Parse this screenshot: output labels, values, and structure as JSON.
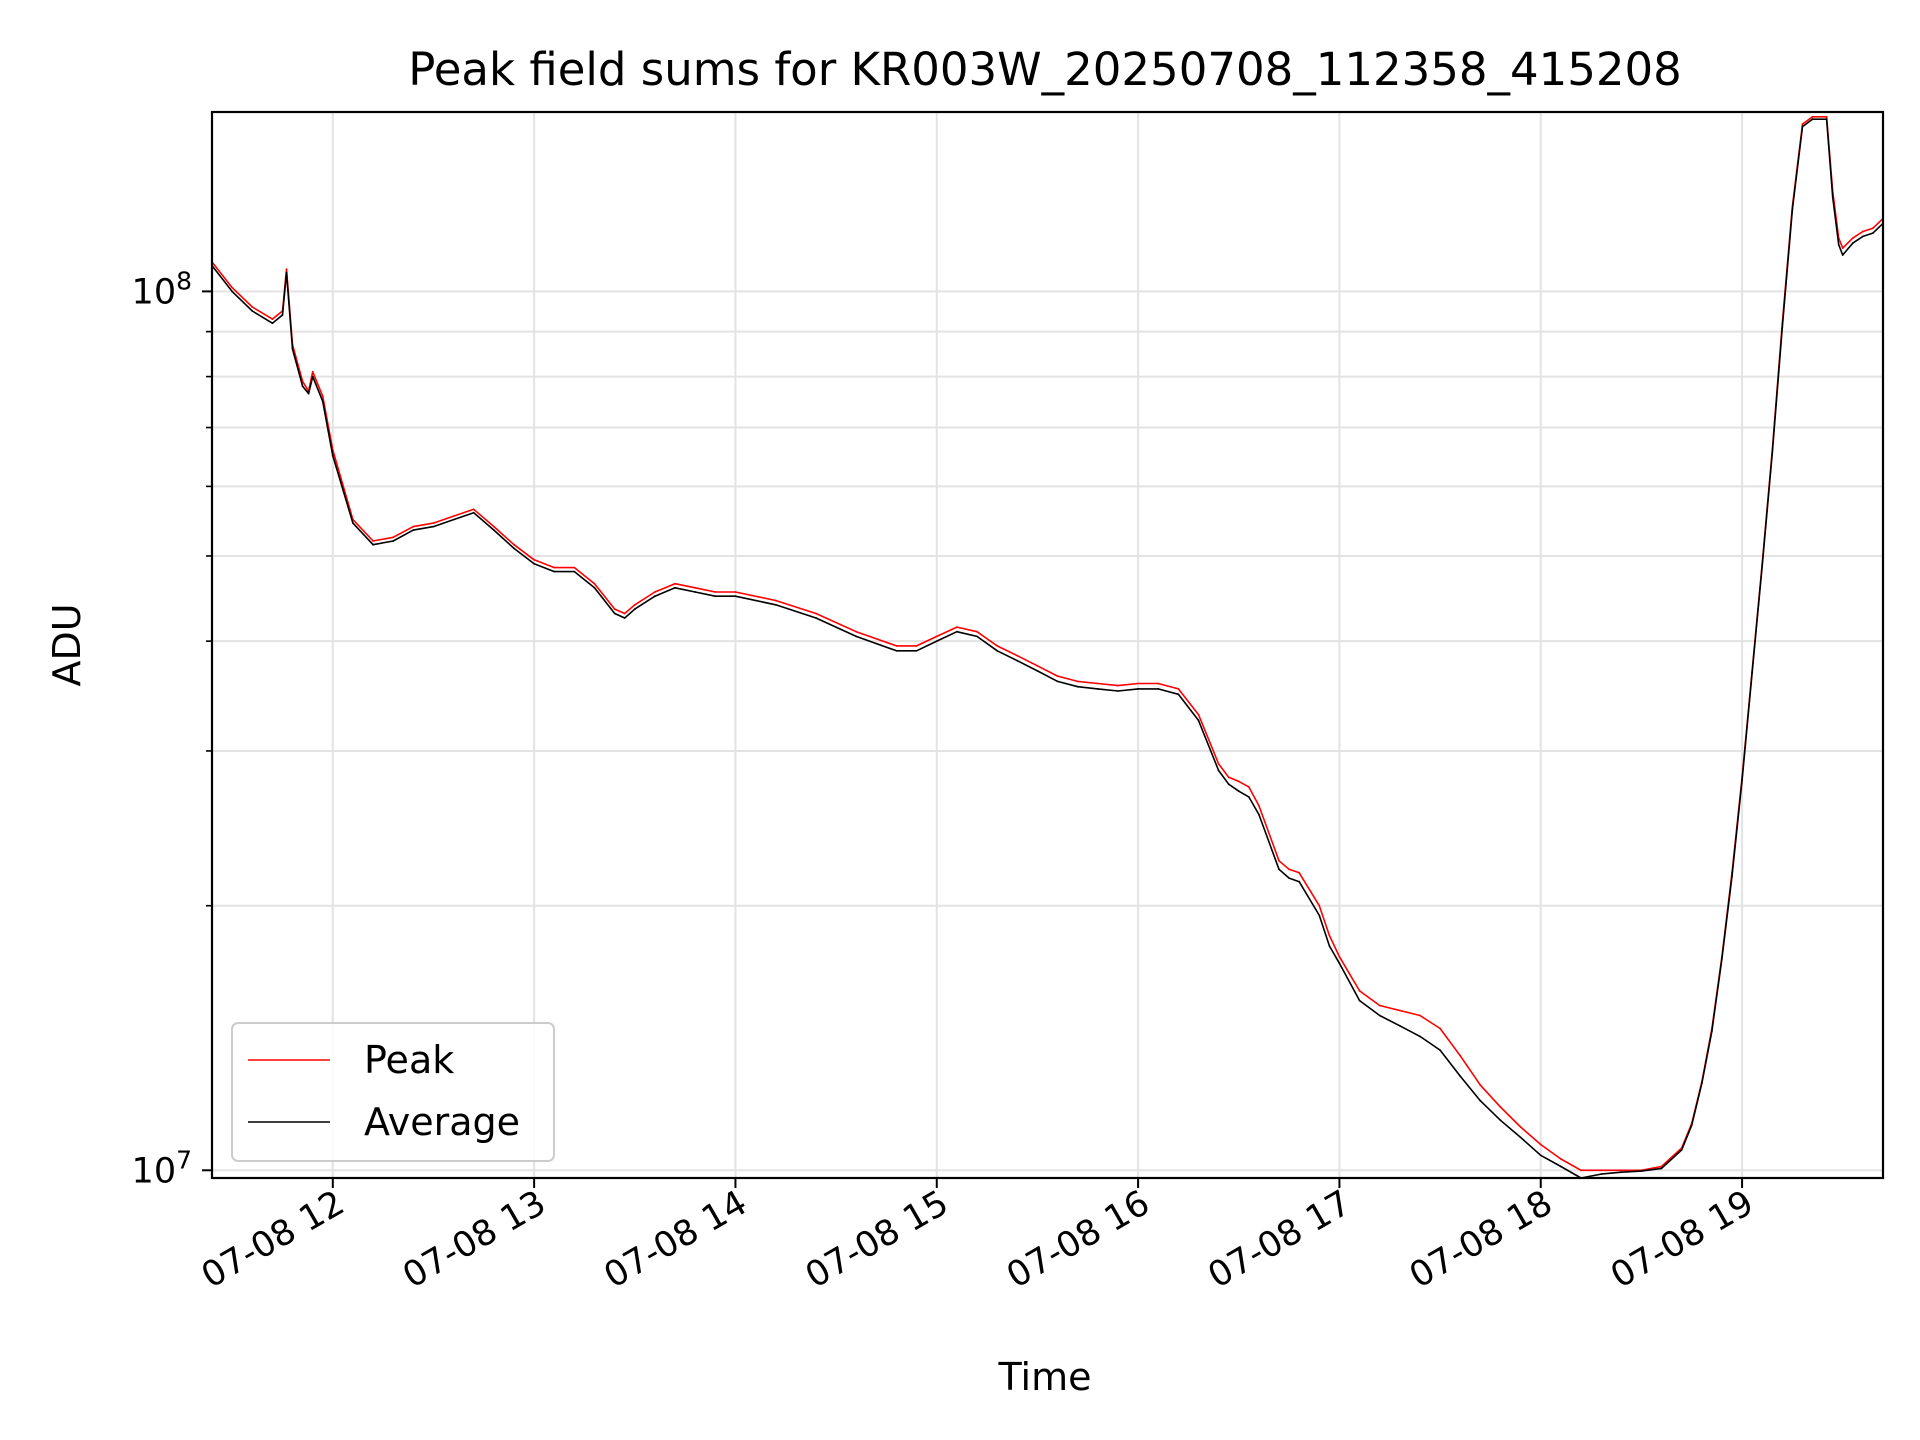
{
  "chart_data": {
    "type": "line",
    "title": "Peak field sums for KR003W_20250708_112358_415208",
    "xlabel": "Time",
    "ylabel": "ADU",
    "x_unit": "hours of day 2025-07-08",
    "xlim": [
      11.4,
      19.7
    ],
    "ylim": [
      9800000,
      160000000
    ],
    "yscale": "log",
    "grid": true,
    "legend_position": "lower left",
    "x_ticks": [
      {
        "value": 12,
        "label": "07-08 12"
      },
      {
        "value": 13,
        "label": "07-08 13"
      },
      {
        "value": 14,
        "label": "07-08 14"
      },
      {
        "value": 15,
        "label": "07-08 15"
      },
      {
        "value": 16,
        "label": "07-08 16"
      },
      {
        "value": 17,
        "label": "07-08 17"
      },
      {
        "value": 18,
        "label": "07-08 18"
      },
      {
        "value": 19,
        "label": "07-08 19"
      }
    ],
    "y_ticks": [
      {
        "value": 10000000,
        "base": "10",
        "exp": "7"
      },
      {
        "value": 100000000,
        "base": "10",
        "exp": "8"
      }
    ],
    "y_minor_ticks": [
      20000000,
      30000000,
      40000000,
      50000000,
      60000000,
      70000000,
      80000000,
      90000000
    ],
    "series": [
      {
        "name": "Peak",
        "color": "#ff0000",
        "x": [
          11.4,
          11.5,
          11.6,
          11.7,
          11.75,
          11.77,
          11.8,
          11.85,
          11.88,
          11.9,
          11.95,
          12.0,
          12.1,
          12.2,
          12.3,
          12.4,
          12.5,
          12.6,
          12.7,
          12.8,
          12.9,
          13.0,
          13.1,
          13.2,
          13.3,
          13.4,
          13.45,
          13.5,
          13.6,
          13.7,
          13.8,
          13.9,
          14.0,
          14.2,
          14.4,
          14.6,
          14.8,
          14.9,
          15.0,
          15.1,
          15.2,
          15.3,
          15.4,
          15.5,
          15.6,
          15.7,
          15.8,
          15.9,
          16.0,
          16.1,
          16.2,
          16.3,
          16.4,
          16.45,
          16.5,
          16.55,
          16.6,
          16.7,
          16.75,
          16.8,
          16.9,
          16.95,
          17.0,
          17.1,
          17.2,
          17.3,
          17.4,
          17.5,
          17.6,
          17.7,
          17.8,
          17.9,
          18.0,
          18.1,
          18.2,
          18.3,
          18.4,
          18.5,
          18.6,
          18.7,
          18.75,
          18.8,
          18.85,
          18.9,
          18.95,
          19.0,
          19.05,
          19.1,
          19.15,
          19.2,
          19.25,
          19.3,
          19.35,
          19.42,
          19.45,
          19.48,
          19.5,
          19.55,
          19.6,
          19.65,
          19.7
        ],
        "y": [
          108000000,
          101000000,
          96000000,
          93000000,
          95000000,
          106000000,
          87000000,
          79000000,
          77000000,
          81000000,
          76000000,
          66000000,
          55000000,
          52000000,
          52500000,
          54000000,
          54500000,
          55500000,
          56500000,
          54000000,
          51500000,
          49500000,
          48500000,
          48500000,
          46500000,
          43500000,
          43000000,
          44000000,
          45500000,
          46500000,
          46000000,
          45500000,
          45500000,
          44500000,
          43000000,
          41000000,
          39500000,
          39500000,
          40500000,
          41500000,
          41000000,
          39500000,
          38500000,
          37500000,
          36500000,
          36000000,
          35800000,
          35600000,
          35800000,
          35800000,
          35300000,
          33000000,
          29000000,
          28000000,
          27700000,
          27300000,
          26000000,
          22500000,
          22000000,
          21800000,
          20000000,
          18500000,
          17500000,
          16000000,
          15400000,
          15200000,
          15000000,
          14500000,
          13500000,
          12500000,
          11800000,
          11200000,
          10700000,
          10300000,
          10000000,
          10000000,
          10000000,
          10000000,
          10100000,
          10600000,
          11300000,
          12600000,
          14500000,
          17500000,
          21800000,
          28000000,
          37000000,
          49000000,
          66000000,
          92000000,
          125000000,
          155000000,
          158000000,
          158000000,
          130000000,
          115000000,
          112000000,
          115000000,
          117000000,
          118000000,
          121000000
        ]
      },
      {
        "name": "Average",
        "color": "#000000",
        "x": [
          11.4,
          11.5,
          11.6,
          11.7,
          11.75,
          11.77,
          11.8,
          11.85,
          11.88,
          11.9,
          11.95,
          12.0,
          12.1,
          12.2,
          12.3,
          12.4,
          12.5,
          12.6,
          12.7,
          12.8,
          12.9,
          13.0,
          13.1,
          13.2,
          13.3,
          13.4,
          13.45,
          13.5,
          13.6,
          13.7,
          13.8,
          13.9,
          14.0,
          14.2,
          14.4,
          14.6,
          14.8,
          14.9,
          15.0,
          15.1,
          15.2,
          15.3,
          15.4,
          15.5,
          15.6,
          15.7,
          15.8,
          15.9,
          16.0,
          16.1,
          16.2,
          16.3,
          16.4,
          16.45,
          16.5,
          16.55,
          16.6,
          16.7,
          16.75,
          16.8,
          16.9,
          16.95,
          17.0,
          17.1,
          17.2,
          17.3,
          17.4,
          17.5,
          17.6,
          17.7,
          17.8,
          17.9,
          18.0,
          18.1,
          18.2,
          18.3,
          18.4,
          18.5,
          18.6,
          18.7,
          18.75,
          18.8,
          18.85,
          18.9,
          18.95,
          19.0,
          19.05,
          19.1,
          19.15,
          19.2,
          19.25,
          19.3,
          19.35,
          19.42,
          19.45,
          19.48,
          19.5,
          19.55,
          19.6,
          19.65,
          19.7
        ],
        "y": [
          107000000,
          100000000,
          95000000,
          92000000,
          94000000,
          105000000,
          86000000,
          78000000,
          76500000,
          80000000,
          75000000,
          65000000,
          54500000,
          51500000,
          52000000,
          53500000,
          54000000,
          55000000,
          56000000,
          53500000,
          51000000,
          49000000,
          48000000,
          48000000,
          46000000,
          43000000,
          42500000,
          43500000,
          45000000,
          46000000,
          45500000,
          45000000,
          45000000,
          44000000,
          42500000,
          40500000,
          39000000,
          39000000,
          40000000,
          41000000,
          40500000,
          39000000,
          38000000,
          37000000,
          36000000,
          35500000,
          35300000,
          35100000,
          35300000,
          35300000,
          34800000,
          32500000,
          28500000,
          27500000,
          27000000,
          26600000,
          25400000,
          22000000,
          21500000,
          21300000,
          19500000,
          18000000,
          17200000,
          15600000,
          15000000,
          14600000,
          14200000,
          13700000,
          12800000,
          12000000,
          11400000,
          10900000,
          10400000,
          10100000,
          9800000,
          9900000,
          9950000,
          9980000,
          10050000,
          10550000,
          11250000,
          12550000,
          14400000,
          17400000,
          21600000,
          27800000,
          36800000,
          48700000,
          65500000,
          91000000,
          124000000,
          154000000,
          157000000,
          157000000,
          128000000,
          113000000,
          110000000,
          113500000,
          115500000,
          116500000,
          119500000
        ]
      }
    ]
  }
}
